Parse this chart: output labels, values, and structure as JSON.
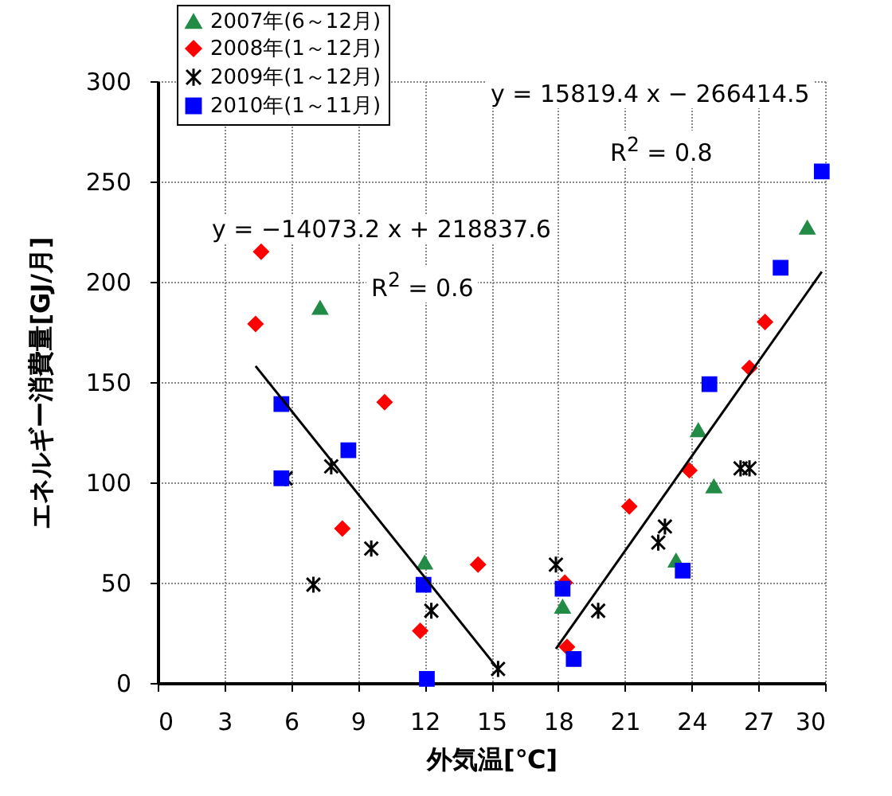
{
  "chart_data": {
    "type": "scatter",
    "xlabel": "外気温[℃]",
    "ylabel": "エネルギー消費量[GJ/月]",
    "xlim": [
      0,
      30
    ],
    "xticks": [
      0,
      3,
      6,
      9,
      12,
      15,
      18,
      21,
      24,
      27,
      30
    ],
    "ylim": [
      0,
      300
    ],
    "yticks": [
      0,
      50,
      100,
      150,
      200,
      250,
      300
    ],
    "grid": true,
    "legend": "top left",
    "series": [
      {
        "name": "2007年(6～12月)",
        "color": "#228b45",
        "marker": "triangle",
        "x": [
          7.3,
          12.0,
          24.3,
          25.0,
          23.3,
          18.2,
          29.2
        ],
        "values": [
          187,
          60,
          126,
          98,
          61,
          38,
          227
        ]
      },
      {
        "name": "2008年(1～12月)",
        "color": "#ff0000",
        "marker": "diamond",
        "x": [
          4.65,
          4.4,
          10.2,
          8.3,
          14.4,
          11.8,
          18.4,
          18.3,
          21.2,
          23.9,
          26.6,
          27.3
        ],
        "values": [
          215,
          179,
          140,
          77,
          59,
          26,
          18,
          50,
          88,
          106,
          157,
          180
        ]
      },
      {
        "name": "2009年(1～12月)",
        "color": "#000000",
        "marker": "cross",
        "x": [
          5.75,
          7.8,
          7.0,
          9.6,
          12.3,
          15.3,
          17.9,
          19.8,
          22.5,
          22.8,
          26.2,
          26.6
        ],
        "values": [
          102,
          108,
          49,
          67,
          36,
          7,
          59,
          36,
          70,
          78,
          107,
          107
        ]
      },
      {
        "name": "2010年(1～11月)",
        "color": "#0000ff",
        "marker": "square",
        "x": [
          5.56,
          5.56,
          8.57,
          11.95,
          12.1,
          18.2,
          18.7,
          23.6,
          24.8,
          28.0,
          29.85
        ],
        "values": [
          139,
          102,
          116,
          49,
          2,
          47,
          12,
          56,
          149,
          207,
          255
        ]
      },
      {
        "type": "line",
        "color": "#000000",
        "line_style": "solid",
        "x": [
          4.4,
          15.3
        ],
        "values": [
          158,
          7
        ]
      },
      {
        "type": "line",
        "color": "#000000",
        "line_style": "solid",
        "x": [
          17.9,
          29.85
        ],
        "values": [
          17,
          205
        ]
      }
    ],
    "annotations": [
      "y = 15819.4 x − 266414.5",
      "R$^{2}$ = 0.8",
      "y = −14073.2 x + 218837.6",
      "R$^{2}$ = 0.6"
    ]
  }
}
